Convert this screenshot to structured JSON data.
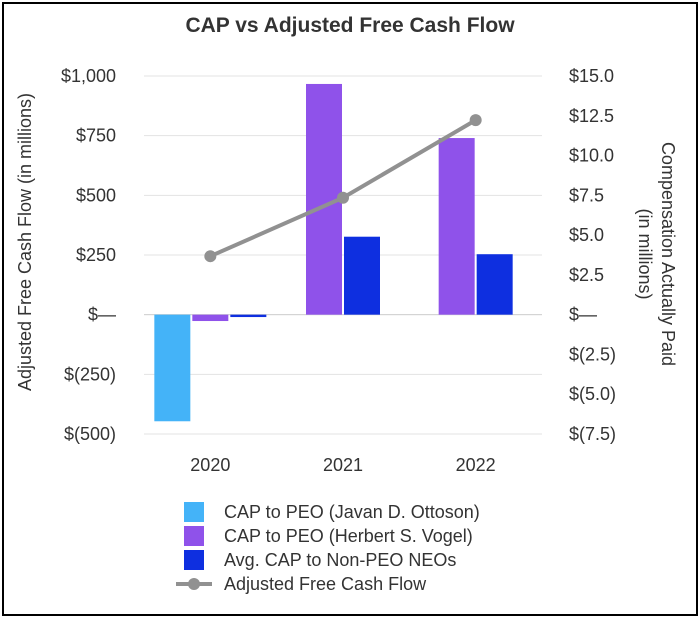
{
  "chart_data": {
    "type": "bar",
    "title": "CAP vs Adjusted Free Cash Flow",
    "categories": [
      "2020",
      "2021",
      "2022"
    ],
    "left_axis": {
      "label": "Adjusted Free Cash Flow (in millions)",
      "range": [
        -500,
        1000
      ],
      "ticks": [
        1000,
        750,
        500,
        250,
        0,
        -250,
        -500
      ],
      "tick_labels": [
        "$1,000",
        "$750",
        "$500",
        "$250",
        "$—",
        "$(250)",
        "$(500)"
      ]
    },
    "right_axis": {
      "label_line1": "Compensation Actually Paid",
      "label_line2": "(in millions)",
      "range": [
        -7.5,
        15
      ],
      "ticks": [
        15,
        12.5,
        10,
        7.5,
        5,
        2.5,
        0,
        -2.5,
        -5,
        -7.5
      ],
      "tick_labels": [
        "$15.0",
        "$12.5",
        "$10.0",
        "$7.5",
        "$5.0",
        "$2.5",
        "$—",
        "$(2.5)",
        "$(5.0)",
        "$(7.5)"
      ]
    },
    "series": [
      {
        "name": "CAP to PEO (Javan D. Ottoson)",
        "type": "bar",
        "axis": "right",
        "color": "#44b3f8",
        "values": [
          -6.7,
          null,
          null
        ]
      },
      {
        "name": "CAP to PEO (Herbert S. Vogel)",
        "type": "bar",
        "axis": "right",
        "color": "#8f52ea",
        "values": [
          -0.4,
          14.5,
          11.1
        ]
      },
      {
        "name": "Avg. CAP to Non-PEO NEOs",
        "type": "bar",
        "axis": "right",
        "color": "#0e2fe0",
        "values": [
          -0.15,
          4.9,
          3.8
        ]
      },
      {
        "name": "Adjusted Free Cash Flow",
        "type": "line",
        "axis": "left",
        "color": "#919191",
        "values": [
          245,
          490,
          815
        ]
      }
    ],
    "grid": true,
    "legend": "bottom"
  }
}
